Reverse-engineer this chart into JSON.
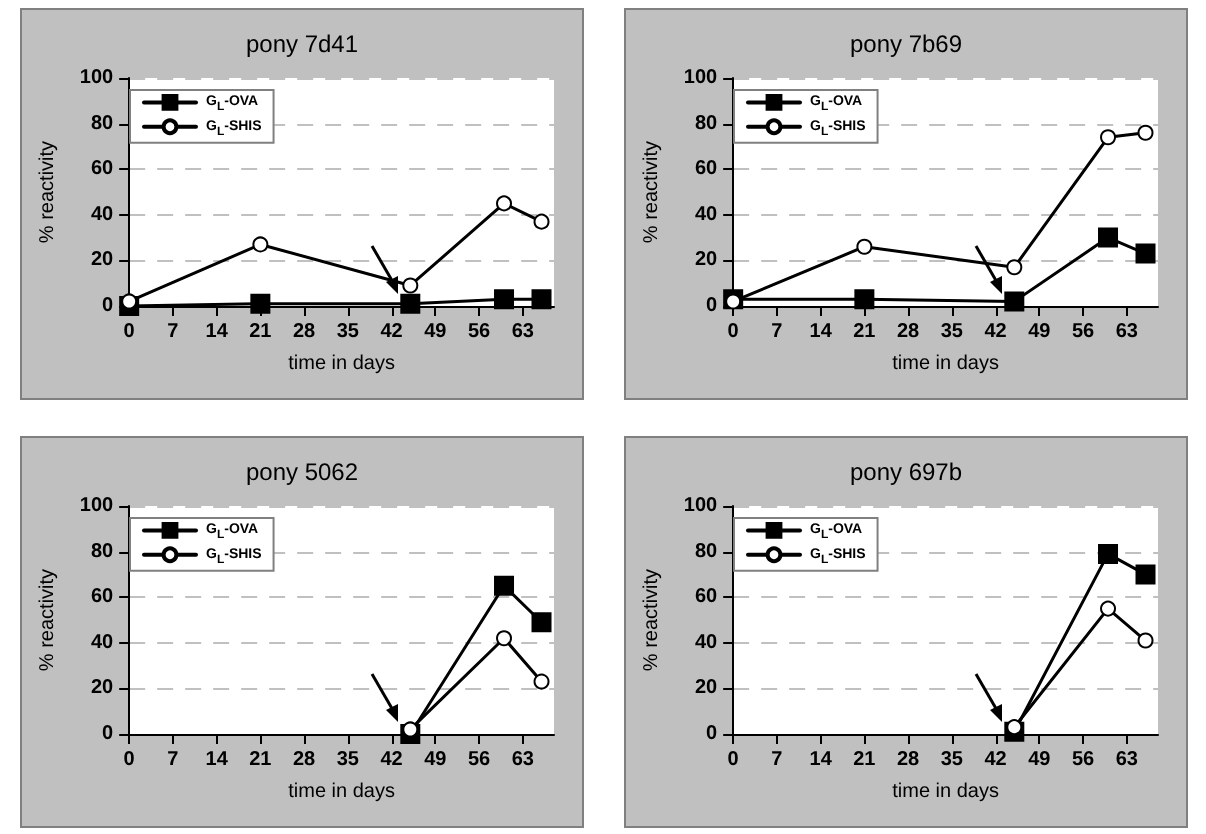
{
  "chart_data": [
    {
      "type": "line",
      "title": "pony 7d41",
      "xlabel": "time in days",
      "ylabel": "% reactivity",
      "xlim": [
        0,
        68
      ],
      "xticks": [
        0,
        7,
        14,
        21,
        28,
        35,
        42,
        49,
        56,
        63
      ],
      "ylim": [
        0,
        100
      ],
      "yticks": [
        0,
        20,
        40,
        60,
        80,
        100
      ],
      "grid": "y",
      "legend": "top left",
      "series": [
        {
          "name": "G$_{L}$-OVA",
          "color": "#000000",
          "marker": "square",
          "x": [
            0,
            21,
            45,
            60,
            66
          ],
          "values": [
            0,
            1,
            1,
            3,
            3
          ]
        },
        {
          "name": "G$_{L}$-SHIS",
          "color": "#000000",
          "marker": "circle",
          "x": [
            0,
            21,
            45,
            60,
            66
          ],
          "values": [
            2,
            27,
            9,
            45,
            37
          ]
        }
      ]
    },
    {
      "type": "line",
      "title": "pony 7b69",
      "xlabel": "time in days",
      "ylabel": "% reactivity",
      "xlim": [
        0,
        68
      ],
      "xticks": [
        0,
        7,
        14,
        21,
        28,
        35,
        42,
        49,
        56,
        63
      ],
      "ylim": [
        0,
        100
      ],
      "yticks": [
        0,
        20,
        40,
        60,
        80,
        100
      ],
      "grid": "y",
      "legend": "top left",
      "series": [
        {
          "name": "G$_{L}$-OVA",
          "color": "#000000",
          "marker": "square",
          "x": [
            0,
            21,
            45,
            60,
            66
          ],
          "values": [
            3,
            3,
            2,
            30,
            23
          ]
        },
        {
          "name": "G$_{L}$-SHIS",
          "color": "#000000",
          "marker": "circle",
          "x": [
            0,
            21,
            45,
            60,
            66
          ],
          "values": [
            2,
            26,
            17,
            74,
            76
          ]
        }
      ]
    },
    {
      "type": "line",
      "title": "pony 5062",
      "xlabel": "time in days",
      "ylabel": "% reactivity",
      "xlim": [
        0,
        68
      ],
      "xticks": [
        0,
        7,
        14,
        21,
        28,
        35,
        42,
        49,
        56,
        63
      ],
      "ylim": [
        0,
        100
      ],
      "yticks": [
        0,
        20,
        40,
        60,
        80,
        100
      ],
      "grid": "y",
      "legend": "top left",
      "series": [
        {
          "name": "G$_{L}$-OVA",
          "color": "#000000",
          "marker": "square",
          "x": [
            45,
            60,
            66
          ],
          "values": [
            0,
            65,
            49
          ]
        },
        {
          "name": "G$_{L}$-SHIS",
          "color": "#000000",
          "marker": "circle",
          "x": [
            45,
            60,
            66
          ],
          "values": [
            2,
            42,
            23
          ]
        }
      ]
    },
    {
      "type": "line",
      "title": "pony 697b",
      "xlabel": "time in days",
      "ylabel": "% reactivity",
      "xlim": [
        0,
        68
      ],
      "xticks": [
        0,
        7,
        14,
        21,
        28,
        35,
        42,
        49,
        56,
        63
      ],
      "ylim": [
        0,
        100
      ],
      "yticks": [
        0,
        20,
        40,
        60,
        80,
        100
      ],
      "grid": "y",
      "legend": "top left",
      "series": [
        {
          "name": "G$_{L}$-OVA",
          "color": "#000000",
          "marker": "square",
          "x": [
            45,
            60,
            66
          ],
          "values": [
            1,
            79,
            70
          ]
        },
        {
          "name": "G$_{L}$-SHIS",
          "color": "#000000",
          "marker": "circle",
          "x": [
            45,
            60,
            66
          ],
          "values": [
            3,
            55,
            41
          ]
        }
      ]
    }
  ]
}
